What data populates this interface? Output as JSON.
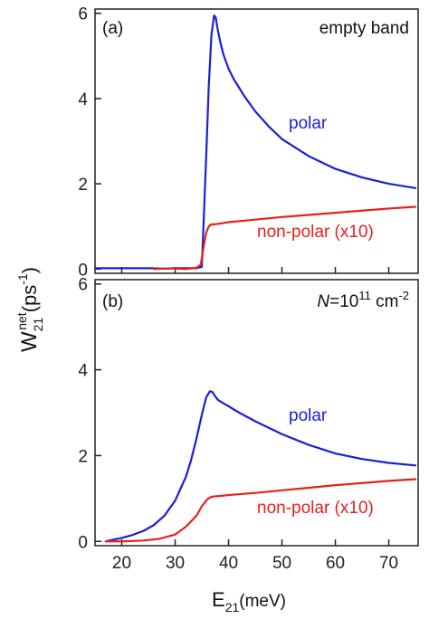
{
  "figure": {
    "ylabel_main": "W",
    "ylabel_sup": "net",
    "ylabel_sub": "21",
    "ylabel_unit_open": "(ps",
    "ylabel_unit_sup": "-1",
    "ylabel_unit_close": ")",
    "xlabel_main": "E",
    "xlabel_sub": "21",
    "xlabel_unit": "(meV)"
  },
  "colors": {
    "polar": "#1a1fd6",
    "nonpolar": "#e8201c",
    "axis": "#222222"
  },
  "chart_data": [
    {
      "type": "line",
      "panel_label": "(a)",
      "annotation": "empty band",
      "xlim": [
        15,
        75.5
      ],
      "ylim": [
        -0.1,
        6.1
      ],
      "yticks": [
        0,
        2,
        4,
        6
      ],
      "xticks": [
        20,
        30,
        40,
        50,
        60,
        70
      ],
      "show_xtick_labels": false,
      "series": [
        {
          "name": "polar",
          "label": "polar",
          "color": "#1a1fd6",
          "x": [
            15,
            20,
            25,
            28,
            30,
            32,
            34,
            35.0,
            35.3,
            35.8,
            36.3,
            36.8,
            37.3,
            37.6,
            38.0,
            38.5,
            39,
            40,
            41,
            42,
            43,
            45,
            47.5,
            50,
            55,
            60,
            65,
            70,
            75
          ],
          "y": [
            0.02,
            0.02,
            0.02,
            0.01,
            0.02,
            0.02,
            0.02,
            0.05,
            1.0,
            2.6,
            4.3,
            5.5,
            5.95,
            5.9,
            5.6,
            5.3,
            5.05,
            4.7,
            4.45,
            4.25,
            4.05,
            3.7,
            3.35,
            3.05,
            2.65,
            2.35,
            2.15,
            2.0,
            1.9
          ]
        },
        {
          "name": "non-polar (x10)",
          "label": "non-polar (x10)",
          "color": "#e8201c",
          "x": [
            26,
            28,
            30,
            32,
            34,
            34.8,
            35.3,
            35.8,
            36.3,
            36.8,
            37.5,
            38.5,
            40,
            45,
            50,
            55,
            60,
            65,
            70,
            75
          ],
          "y": [
            0.0,
            0.01,
            0.01,
            0.0,
            0.03,
            0.1,
            0.5,
            0.85,
            1.0,
            1.05,
            1.05,
            1.07,
            1.1,
            1.16,
            1.22,
            1.27,
            1.32,
            1.37,
            1.42,
            1.46
          ]
        }
      ]
    },
    {
      "type": "line",
      "panel_label": "(b)",
      "annotation_italic": "N",
      "annotation_main": "=10",
      "annotation_sup1": "11",
      "annotation_unit": " cm",
      "annotation_sup2": "-2",
      "xlim": [
        15,
        75.5
      ],
      "ylim": [
        -0.1,
        6.1
      ],
      "yticks": [
        0,
        2,
        4,
        6
      ],
      "xticks": [
        20,
        30,
        40,
        50,
        60,
        70
      ],
      "series": [
        {
          "name": "polar",
          "label": "polar",
          "color": "#1a1fd6",
          "x": [
            17,
            18,
            20,
            22,
            24,
            26,
            28,
            30,
            32,
            33,
            34,
            35,
            35.8,
            36.5,
            37.0,
            37.5,
            38,
            39,
            40,
            42,
            45,
            50,
            55,
            60,
            65,
            70,
            75
          ],
          "y": [
            0.0,
            0.03,
            0.08,
            0.15,
            0.24,
            0.38,
            0.6,
            0.95,
            1.5,
            1.9,
            2.4,
            2.95,
            3.35,
            3.5,
            3.48,
            3.38,
            3.3,
            3.22,
            3.15,
            3.0,
            2.8,
            2.5,
            2.25,
            2.05,
            1.92,
            1.83,
            1.77
          ]
        },
        {
          "name": "non-polar (x10)",
          "label": "non-polar (x10)",
          "color": "#e8201c",
          "x": [
            17,
            20,
            24,
            27,
            30,
            32,
            34,
            35,
            36,
            36.8,
            37.5,
            38.5,
            40,
            45,
            50,
            55,
            60,
            65,
            70,
            75
          ],
          "y": [
            0.0,
            0.0,
            0.02,
            0.06,
            0.16,
            0.34,
            0.6,
            0.82,
            0.98,
            1.04,
            1.05,
            1.06,
            1.08,
            1.13,
            1.19,
            1.25,
            1.31,
            1.36,
            1.41,
            1.45
          ]
        }
      ]
    }
  ]
}
